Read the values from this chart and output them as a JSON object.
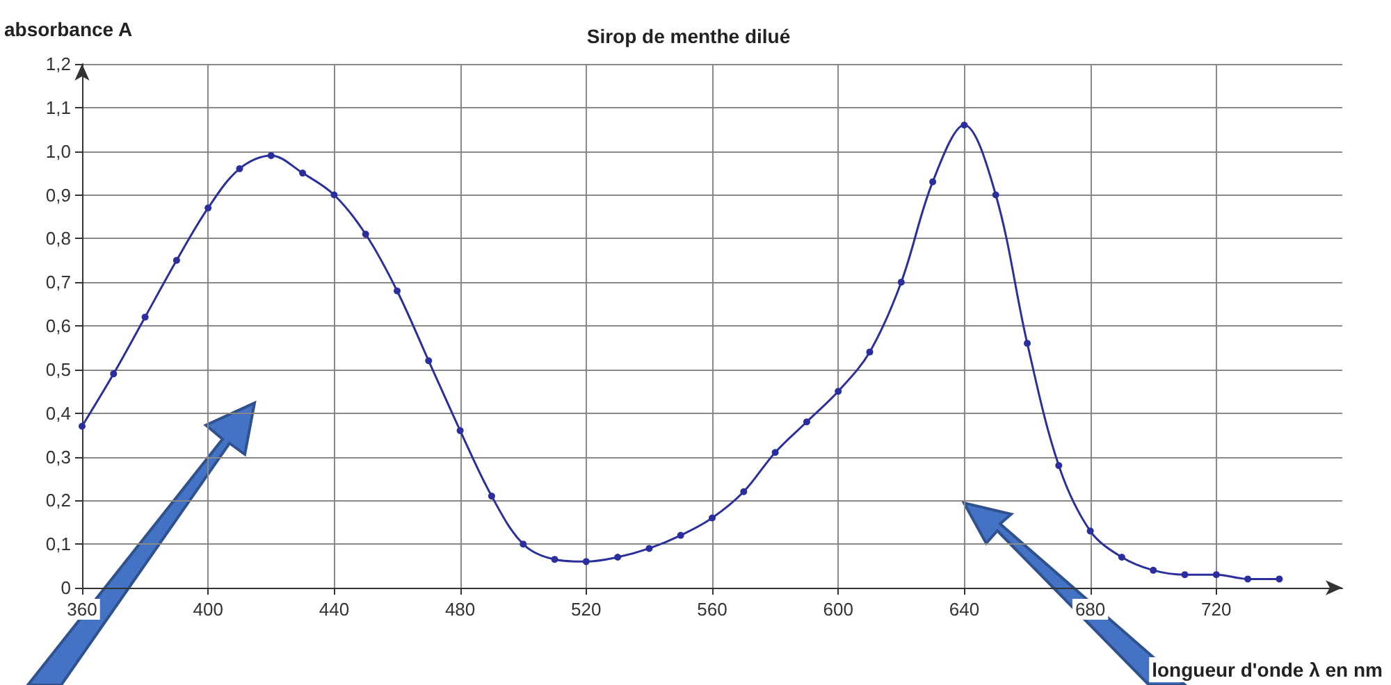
{
  "chart_data": {
    "type": "line",
    "title": "Sirop de menthe dilué",
    "xlabel": "longueur d'onde λ en nm",
    "ylabel": "absorbance A",
    "x": [
      360,
      370,
      380,
      390,
      400,
      410,
      420,
      430,
      440,
      450,
      460,
      470,
      480,
      490,
      500,
      510,
      520,
      530,
      540,
      550,
      560,
      570,
      580,
      590,
      600,
      610,
      620,
      630,
      640,
      650,
      660,
      670,
      680,
      690,
      700,
      710,
      720,
      730,
      740
    ],
    "series": [
      {
        "color": "#2b2f9e",
        "values": [
          0.37,
          0.49,
          0.62,
          0.75,
          0.87,
          0.96,
          0.99,
          0.95,
          0.9,
          0.81,
          0.68,
          0.52,
          0.36,
          0.21,
          0.1,
          0.065,
          0.06,
          0.07,
          0.09,
          0.12,
          0.16,
          0.22,
          0.31,
          0.38,
          0.45,
          0.54,
          0.7,
          0.93,
          1.06,
          0.9,
          0.56,
          0.28,
          0.13,
          0.07,
          0.04,
          0.03,
          0.03,
          0.02,
          0.02
        ]
      }
    ],
    "xlim": [
      360,
      760
    ],
    "xticks": [
      360,
      400,
      440,
      480,
      520,
      560,
      600,
      640,
      680,
      720
    ],
    "ylim": [
      0,
      1.2
    ],
    "yticks": [
      0,
      {
        "value": 0.1,
        "label": "0,1"
      },
      {
        "value": 0.2,
        "label": "0,2"
      },
      {
        "value": 0.3,
        "label": "0,3"
      },
      {
        "value": 0.4,
        "label": "0,4"
      },
      {
        "value": 0.5,
        "label": "0,5"
      },
      {
        "value": 0.6,
        "label": "0,6"
      },
      {
        "value": 0.7,
        "label": "0,7"
      },
      {
        "value": 0.8,
        "label": "0,8"
      },
      {
        "value": 0.9,
        "label": "0,9"
      },
      {
        "value": 1.0,
        "label": "1,0"
      },
      {
        "value": 1.1,
        "label": "1,1"
      },
      {
        "value": 1.2,
        "label": "1,2"
      }
    ],
    "grid": true,
    "marker": "circle",
    "line_style": "solid"
  }
}
